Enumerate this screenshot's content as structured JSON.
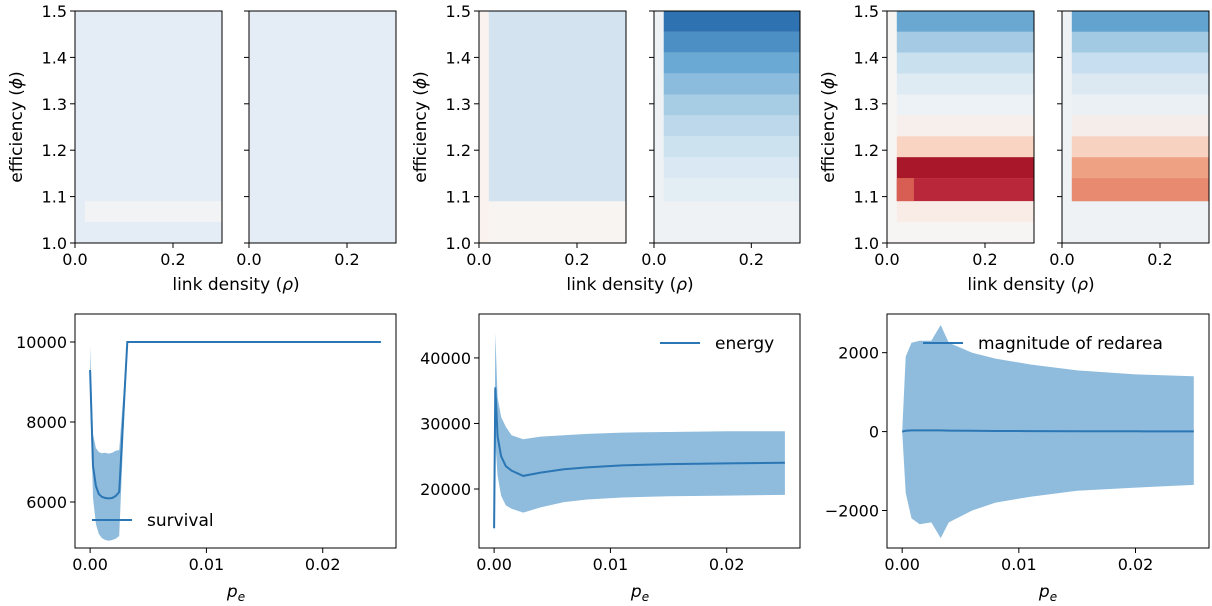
{
  "labels": {
    "efficiency": "efficiency (",
    "phi": "ϕ",
    "link_density": "link density (",
    "rho": "ρ",
    "close_paren": ")",
    "pe_main": "p",
    "pe_sub": "e"
  },
  "colors": {
    "line": "#2b76b4",
    "band": "#8fbcdd"
  },
  "chart_data": [
    {
      "type": "heatmap",
      "id": "hm-1a",
      "xlim": [
        0.0,
        0.3
      ],
      "ylim": [
        1.0,
        1.5
      ],
      "x_ticks": [
        "0.0",
        "0.2"
      ],
      "y_ticks": [
        "1.0",
        "1.1",
        "1.2",
        "1.3",
        "1.4",
        "1.5"
      ],
      "show_y_ticklabels": true,
      "base_color": "#e4ecf5",
      "bands": [
        {
          "y0": 1.045,
          "y1": 1.09,
          "x0": 0.02,
          "x1": 0.3,
          "color": "#f2f3f5"
        }
      ]
    },
    {
      "type": "heatmap",
      "id": "hm-1b",
      "xlim": [
        0.0,
        0.3
      ],
      "ylim": [
        1.0,
        1.5
      ],
      "x_ticks": [
        "0.0",
        "0.2"
      ],
      "y_ticks": [
        "1.0",
        "1.1",
        "1.2",
        "1.3",
        "1.4",
        "1.5"
      ],
      "show_y_ticklabels": false,
      "base_color": "#e4ecf5",
      "bands": []
    },
    {
      "type": "heatmap",
      "id": "hm-2a",
      "xlim": [
        0.0,
        0.3
      ],
      "ylim": [
        1.0,
        1.5
      ],
      "x_ticks": [
        "0.0",
        "0.2"
      ],
      "y_ticks": [
        "1.0",
        "1.1",
        "1.2",
        "1.3",
        "1.4",
        "1.5"
      ],
      "show_y_ticklabels": true,
      "base_color": "#f7f4f2",
      "bands": [
        {
          "y0": 1.0,
          "y1": 1.5,
          "x0": 0.0,
          "x1": 0.02,
          "color": "#faf2ee"
        },
        {
          "y0": 1.09,
          "y1": 1.5,
          "x0": 0.02,
          "x1": 0.3,
          "color": "#d3e4f0"
        }
      ]
    },
    {
      "type": "heatmap",
      "id": "hm-2b",
      "xlim": [
        0.0,
        0.3
      ],
      "ylim": [
        1.0,
        1.5
      ],
      "x_ticks": [
        "0.0",
        "0.2"
      ],
      "y_ticks": [
        "1.0",
        "1.1",
        "1.2",
        "1.3",
        "1.4",
        "1.5"
      ],
      "show_y_ticklabels": false,
      "base_color": "#eef2f5",
      "bands": [
        {
          "y0": 1.455,
          "y1": 1.5,
          "x0": 0.02,
          "x1": 0.3,
          "color": "#2f72b1"
        },
        {
          "y0": 1.41,
          "y1": 1.455,
          "x0": 0.02,
          "x1": 0.3,
          "color": "#4b8fc4"
        },
        {
          "y0": 1.365,
          "y1": 1.41,
          "x0": 0.02,
          "x1": 0.3,
          "color": "#6aa9d3"
        },
        {
          "y0": 1.32,
          "y1": 1.365,
          "x0": 0.02,
          "x1": 0.3,
          "color": "#8bbcdd"
        },
        {
          "y0": 1.275,
          "y1": 1.32,
          "x0": 0.02,
          "x1": 0.3,
          "color": "#a7cde4"
        },
        {
          "y0": 1.23,
          "y1": 1.275,
          "x0": 0.02,
          "x1": 0.3,
          "color": "#bcd8ea"
        },
        {
          "y0": 1.185,
          "y1": 1.23,
          "x0": 0.02,
          "x1": 0.3,
          "color": "#cde2ef"
        },
        {
          "y0": 1.14,
          "y1": 1.185,
          "x0": 0.02,
          "x1": 0.3,
          "color": "#d9e8f2"
        },
        {
          "y0": 1.09,
          "y1": 1.14,
          "x0": 0.02,
          "x1": 0.3,
          "color": "#e2edf4"
        }
      ]
    },
    {
      "type": "heatmap",
      "id": "hm-3a",
      "xlim": [
        0.0,
        0.3
      ],
      "ylim": [
        1.0,
        1.5
      ],
      "x_ticks": [
        "0.0",
        "0.2"
      ],
      "y_ticks": [
        "1.0",
        "1.1",
        "1.2",
        "1.3",
        "1.4",
        "1.5"
      ],
      "show_y_ticklabels": true,
      "base_color": "#f7f5f4",
      "bands": [
        {
          "y0": 1.455,
          "y1": 1.5,
          "x0": 0.02,
          "x1": 0.3,
          "color": "#6aa8d2"
        },
        {
          "y0": 1.41,
          "y1": 1.455,
          "x0": 0.02,
          "x1": 0.3,
          "color": "#a4cbe3"
        },
        {
          "y0": 1.365,
          "y1": 1.41,
          "x0": 0.02,
          "x1": 0.3,
          "color": "#c9e0ee"
        },
        {
          "y0": 1.32,
          "y1": 1.365,
          "x0": 0.02,
          "x1": 0.3,
          "color": "#dfebf3"
        },
        {
          "y0": 1.275,
          "y1": 1.32,
          "x0": 0.02,
          "x1": 0.3,
          "color": "#edf2f6"
        },
        {
          "y0": 1.23,
          "y1": 1.275,
          "x0": 0.02,
          "x1": 0.3,
          "color": "#f6efec"
        },
        {
          "y0": 1.185,
          "y1": 1.23,
          "x0": 0.02,
          "x1": 0.3,
          "color": "#f9d4c2"
        },
        {
          "y0": 1.14,
          "y1": 1.185,
          "x0": 0.02,
          "x1": 0.3,
          "color": "#a8172a"
        },
        {
          "y0": 1.09,
          "y1": 1.14,
          "x0": 0.02,
          "x1": 0.3,
          "color": "#b8283a"
        },
        {
          "y0": 1.09,
          "y1": 1.14,
          "x0": 0.02,
          "x1": 0.055,
          "color": "#d85d52"
        },
        {
          "y0": 1.045,
          "y1": 1.09,
          "x0": 0.02,
          "x1": 0.3,
          "color": "#f9ece6"
        }
      ]
    },
    {
      "type": "heatmap",
      "id": "hm-3b",
      "xlim": [
        0.0,
        0.3
      ],
      "ylim": [
        1.0,
        1.5
      ],
      "x_ticks": [
        "0.0",
        "0.2"
      ],
      "y_ticks": [
        "1.0",
        "1.1",
        "1.2",
        "1.3",
        "1.4",
        "1.5"
      ],
      "show_y_ticklabels": false,
      "base_color": "#eef2f5",
      "bands": [
        {
          "y0": 1.455,
          "y1": 1.5,
          "x0": 0.02,
          "x1": 0.3,
          "color": "#62a3cf"
        },
        {
          "y0": 1.41,
          "y1": 1.455,
          "x0": 0.02,
          "x1": 0.3,
          "color": "#a3cae3"
        },
        {
          "y0": 1.365,
          "y1": 1.41,
          "x0": 0.02,
          "x1": 0.3,
          "color": "#c6def0"
        },
        {
          "y0": 1.32,
          "y1": 1.365,
          "x0": 0.02,
          "x1": 0.3,
          "color": "#dce9f2"
        },
        {
          "y0": 1.275,
          "y1": 1.32,
          "x0": 0.02,
          "x1": 0.3,
          "color": "#ebf0f5"
        },
        {
          "y0": 1.23,
          "y1": 1.275,
          "x0": 0.02,
          "x1": 0.3,
          "color": "#f5ede9"
        },
        {
          "y0": 1.185,
          "y1": 1.23,
          "x0": 0.02,
          "x1": 0.3,
          "color": "#f8d2c0"
        },
        {
          "y0": 1.14,
          "y1": 1.185,
          "x0": 0.02,
          "x1": 0.3,
          "color": "#efa184"
        },
        {
          "y0": 1.09,
          "y1": 1.14,
          "x0": 0.02,
          "x1": 0.3,
          "color": "#e88a6f"
        }
      ]
    },
    {
      "type": "area",
      "id": "line-survival",
      "xlim": [
        -0.0013,
        0.0263
      ],
      "ylim": [
        4850,
        10700
      ],
      "x_ticks": [
        0.0,
        0.01,
        0.02
      ],
      "x_tick_labels": [
        "0.00",
        "0.01",
        "0.02"
      ],
      "y_ticks": [
        6000,
        8000,
        10000
      ],
      "y_tick_labels": [
        "6000",
        "8000",
        "10000"
      ],
      "legend": {
        "label": "survival",
        "placement": "lower-center"
      },
      "x": [
        0.0,
        0.00025,
        0.0005,
        0.00075,
        0.001,
        0.0013,
        0.0016,
        0.0019,
        0.0022,
        0.0025,
        0.0032,
        0.0035,
        0.025
      ],
      "y": [
        9300,
        6900,
        6400,
        6200,
        6130,
        6100,
        6090,
        6100,
        6150,
        6250,
        10000,
        10000,
        10000
      ],
      "y_upper": [
        9900,
        7700,
        7350,
        7250,
        7220,
        7230,
        7210,
        7230,
        7280,
        7300,
        10000,
        10000,
        10000
      ],
      "y_lower": [
        8700,
        6100,
        5450,
        5200,
        5100,
        5050,
        5030,
        5050,
        5080,
        5150,
        10000,
        10000,
        10000
      ]
    },
    {
      "type": "area",
      "id": "line-energy",
      "xlim": [
        -0.0013,
        0.0263
      ],
      "ylim": [
        11000,
        46700
      ],
      "x_ticks": [
        0.0,
        0.01,
        0.02
      ],
      "x_tick_labels": [
        "0.00",
        "0.01",
        "0.02"
      ],
      "y_ticks": [
        20000,
        30000,
        40000
      ],
      "y_tick_labels": [
        "20000",
        "30000",
        "40000"
      ],
      "legend": {
        "label": "energy",
        "placement": "upper-right"
      },
      "x": [
        0.0,
        0.0001,
        0.0003,
        0.0006,
        0.001,
        0.0015,
        0.0025,
        0.004,
        0.006,
        0.008,
        0.011,
        0.015,
        0.02,
        0.025
      ],
      "y": [
        14000,
        35500,
        28000,
        25000,
        23500,
        22800,
        22000,
        22500,
        23000,
        23300,
        23600,
        23800,
        23900,
        24000
      ],
      "y_upper": [
        16000,
        43800,
        34000,
        31000,
        29500,
        28200,
        27600,
        28000,
        28200,
        28400,
        28600,
        28700,
        28800,
        28800
      ],
      "y_lower": [
        13000,
        27200,
        22000,
        19000,
        17500,
        17000,
        16400,
        17200,
        18000,
        18400,
        18700,
        18900,
        19000,
        19100
      ]
    },
    {
      "type": "area",
      "id": "line-redarea",
      "xlim": [
        -0.0013,
        0.0263
      ],
      "ylim": [
        -2950,
        2980
      ],
      "x_ticks": [
        0.0,
        0.01,
        0.02
      ],
      "x_tick_labels": [
        "0.00",
        "0.01",
        "0.02"
      ],
      "y_ticks": [
        -2000,
        0,
        2000
      ],
      "y_tick_labels": [
        "−2000",
        "0",
        "2000"
      ],
      "legend": {
        "label": "magnitude of redarea",
        "placement": "upper-right"
      },
      "x": [
        0.0,
        0.0003,
        0.0008,
        0.0015,
        0.0025,
        0.0033,
        0.004,
        0.006,
        0.008,
        0.011,
        0.015,
        0.02,
        0.025
      ],
      "y": [
        0,
        20,
        30,
        30,
        30,
        30,
        25,
        20,
        15,
        12,
        10,
        8,
        5
      ],
      "y_upper": [
        0,
        1900,
        2250,
        2300,
        2300,
        2700,
        2250,
        2000,
        1850,
        1700,
        1550,
        1450,
        1400
      ],
      "y_lower": [
        0,
        -1550,
        -2200,
        -2350,
        -2300,
        -2700,
        -2300,
        -2000,
        -1800,
        -1650,
        -1500,
        -1420,
        -1350
      ]
    }
  ]
}
